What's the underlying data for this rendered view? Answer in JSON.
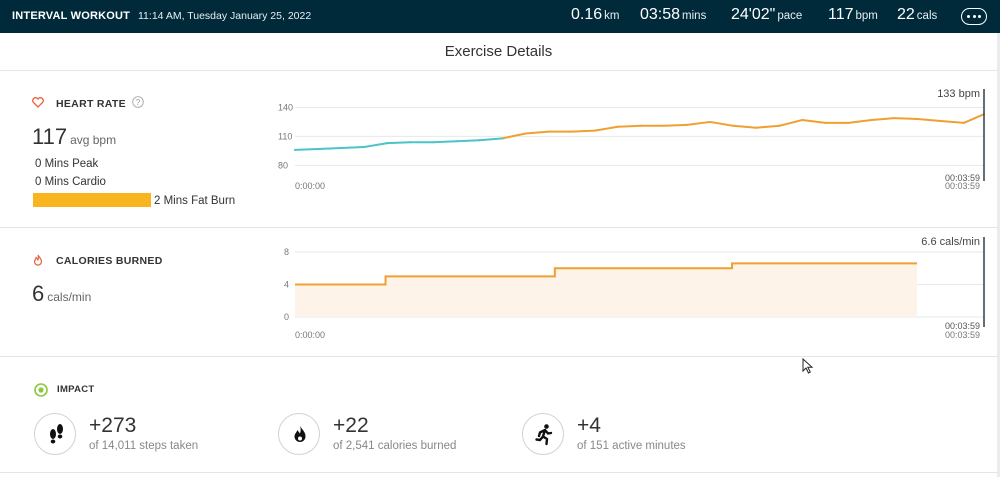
{
  "header": {
    "title": "INTERVAL WORKOUT",
    "datetime": "11:14 AM, Tuesday January 25, 2022",
    "stats": [
      {
        "value": "0.16",
        "unit": "km"
      },
      {
        "value": "03:58",
        "unit": "mins"
      },
      {
        "value": "24'02\"",
        "unit": "pace"
      },
      {
        "value": "117",
        "unit": "bpm"
      },
      {
        "value": "22",
        "unit": "cals"
      }
    ],
    "menu_icon": "more-options-icon"
  },
  "page_title": "Exercise Details",
  "heart_rate": {
    "label": "HEART RATE",
    "avg_value": "117",
    "avg_unit": "avg bpm",
    "zones": [
      {
        "label": "0 Mins Peak"
      },
      {
        "label": "0 Mins Cardio"
      },
      {
        "label": "2 Mins Fat Burn"
      }
    ],
    "zone_color": "#f9b51f",
    "icon": "heart-icon",
    "help_icon": "help-icon",
    "chart_data": {
      "type": "line",
      "y_ticks": [
        "140",
        "110",
        "80"
      ],
      "ylim": [
        70,
        155
      ],
      "x": [
        0,
        8,
        16,
        24,
        32,
        40,
        48,
        56,
        64,
        72,
        80,
        88,
        96,
        104,
        112,
        120,
        128,
        136,
        144,
        152,
        160,
        168,
        176,
        184,
        192,
        200,
        208,
        216,
        224,
        232,
        239
      ],
      "series": [
        {
          "color": "#4cc3c9",
          "values": [
            96,
            97,
            98,
            99,
            103,
            104,
            104,
            105,
            106,
            108,
            113,
            115,
            115,
            116,
            120,
            121,
            121,
            122,
            125,
            121,
            119,
            121,
            127,
            124,
            124,
            127,
            129,
            128,
            126,
            124,
            133
          ]
        }
      ],
      "series_color_warm": "#f0a030",
      "end_label": "133 bpm",
      "start_time": "0:00:00",
      "end_time": "00:03:59",
      "end_time_marker": "00:03:59"
    }
  },
  "calories": {
    "label": "CALORIES BURNED",
    "value": "6",
    "unit": "cals/min",
    "icon": "flame-icon",
    "chart_data": {
      "type": "area",
      "y_ticks": [
        "8",
        "4",
        "0"
      ],
      "ylim": [
        0,
        8
      ],
      "x": [
        0,
        46,
        46,
        132,
        132,
        222,
        222,
        316
      ],
      "values": [
        4,
        4,
        5,
        5,
        6,
        6,
        6.6,
        6.6
      ],
      "color": "#f0a030",
      "fill": "#fdf3e8",
      "end_label": "6.6 cals/min",
      "start_time": "0:00:00",
      "end_time": "00:03:59",
      "end_time_marker": "00:03:59"
    }
  },
  "impact": {
    "label": "IMPACT",
    "icon": "target-icon",
    "items": [
      {
        "value": "+273",
        "sub": "of 14,011 steps taken",
        "icon": "footsteps-icon"
      },
      {
        "value": "+22",
        "sub": "of 2,541 calories burned",
        "icon": "flame-icon"
      },
      {
        "value": "+4",
        "sub": "of 151 active minutes",
        "icon": "runner-icon"
      }
    ]
  }
}
